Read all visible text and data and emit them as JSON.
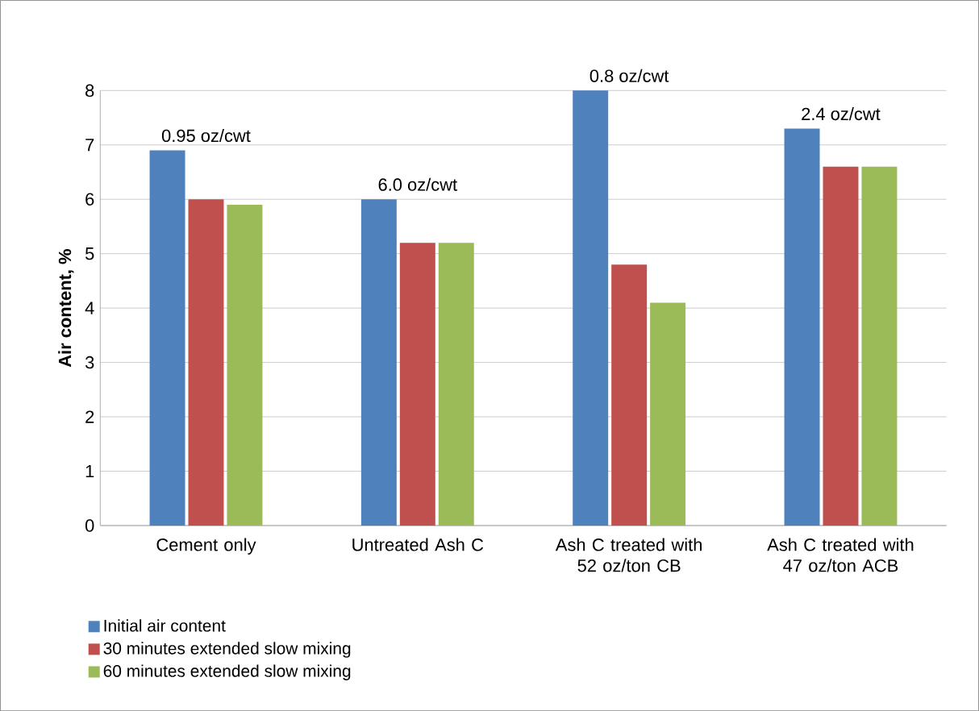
{
  "chart_data": {
    "type": "bar",
    "ylabel": "Air content, %",
    "categories": [
      "Cement only",
      "Untreated Ash C",
      "Ash C treated with 52 oz/ton CB",
      "Ash C treated with 47 oz/ton ACB"
    ],
    "series": [
      {
        "name": "Initial air content",
        "color": "#4f81bd",
        "values": [
          6.9,
          6.0,
          8.0,
          7.3
        ]
      },
      {
        "name": "30 minutes extended slow mixing",
        "color": "#c0504d",
        "values": [
          6.0,
          5.2,
          4.8,
          6.6
        ]
      },
      {
        "name": "60 minutes extended slow mixing",
        "color": "#9bbb59",
        "values": [
          5.9,
          5.2,
          4.1,
          6.6
        ]
      }
    ],
    "annotations": [
      "0.95 oz/cwt",
      "6.0 oz/cwt",
      "0.8 oz/cwt",
      "2.4 oz/cwt"
    ],
    "ylim": [
      0,
      8
    ],
    "yticks": [
      0,
      1,
      2,
      3,
      4,
      5,
      6,
      7,
      8
    ],
    "grid": "y",
    "legend": "bottom left"
  }
}
